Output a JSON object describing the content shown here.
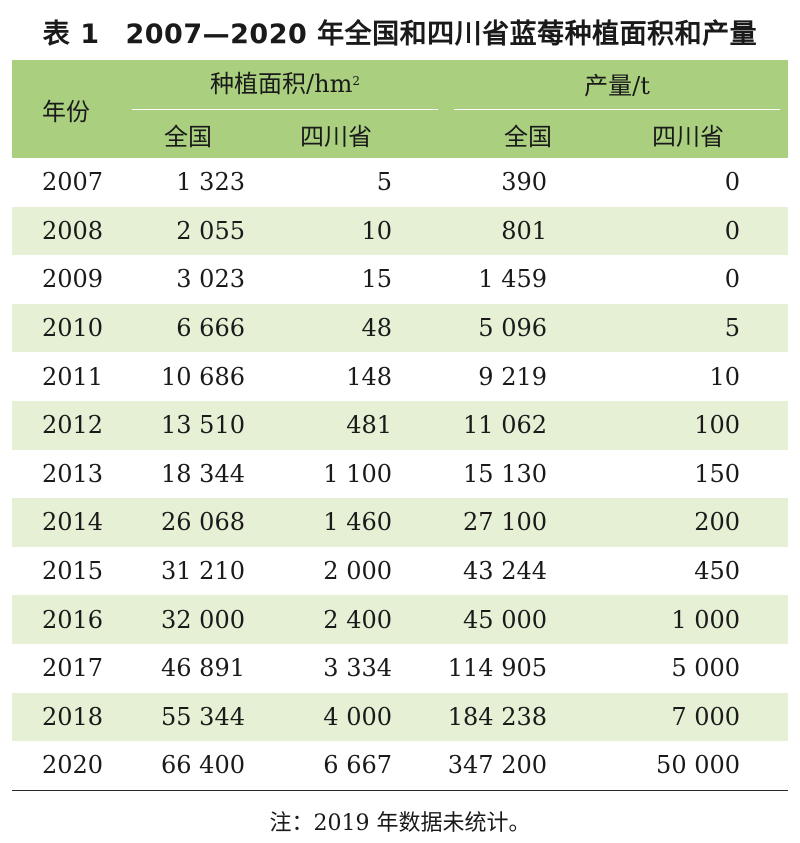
{
  "title": {
    "tag": "表 1",
    "text": "2007—2020 年全国和四川省蓝莓种植面积和产量"
  },
  "header": {
    "year": "年份",
    "area_group": "种植面积/hm",
    "area_sup": "2",
    "output_group": "产量/t",
    "sub": [
      "全国",
      "四川省",
      "全国",
      "四川省"
    ]
  },
  "rows": [
    {
      "year": "2007",
      "area_national": "1 323",
      "area_sichuan": "5",
      "out_national": "390",
      "out_sichuan": "0"
    },
    {
      "year": "2008",
      "area_national": "2 055",
      "area_sichuan": "10",
      "out_national": "801",
      "out_sichuan": "0"
    },
    {
      "year": "2009",
      "area_national": "3 023",
      "area_sichuan": "15",
      "out_national": "1 459",
      "out_sichuan": "0"
    },
    {
      "year": "2010",
      "area_national": "6 666",
      "area_sichuan": "48",
      "out_national": "5 096",
      "out_sichuan": "5"
    },
    {
      "year": "2011",
      "area_national": "10 686",
      "area_sichuan": "148",
      "out_national": "9 219",
      "out_sichuan": "10"
    },
    {
      "year": "2012",
      "area_national": "13 510",
      "area_sichuan": "481",
      "out_national": "11 062",
      "out_sichuan": "100"
    },
    {
      "year": "2013",
      "area_national": "18 344",
      "area_sichuan": "1 100",
      "out_national": "15 130",
      "out_sichuan": "150"
    },
    {
      "year": "2014",
      "area_national": "26 068",
      "area_sichuan": "1 460",
      "out_national": "27 100",
      "out_sichuan": "200"
    },
    {
      "year": "2015",
      "area_national": "31 210",
      "area_sichuan": "2 000",
      "out_national": "43 244",
      "out_sichuan": "450"
    },
    {
      "year": "2016",
      "area_national": "32 000",
      "area_sichuan": "2 400",
      "out_national": "45 000",
      "out_sichuan": "1 000"
    },
    {
      "year": "2017",
      "area_national": "46 891",
      "area_sichuan": "3 334",
      "out_national": "114 905",
      "out_sichuan": "5 000"
    },
    {
      "year": "2018",
      "area_national": "55 344",
      "area_sichuan": "4 000",
      "out_national": "184 238",
      "out_sichuan": "7 000"
    },
    {
      "year": "2020",
      "area_national": "66 400",
      "area_sichuan": "6 667",
      "out_national": "347 200",
      "out_sichuan": "50 000"
    }
  ],
  "note": "注：2019 年数据未统计。",
  "colors": {
    "header_bg": "#a9cf7f",
    "stripe_bg": "#e6f0d5"
  }
}
